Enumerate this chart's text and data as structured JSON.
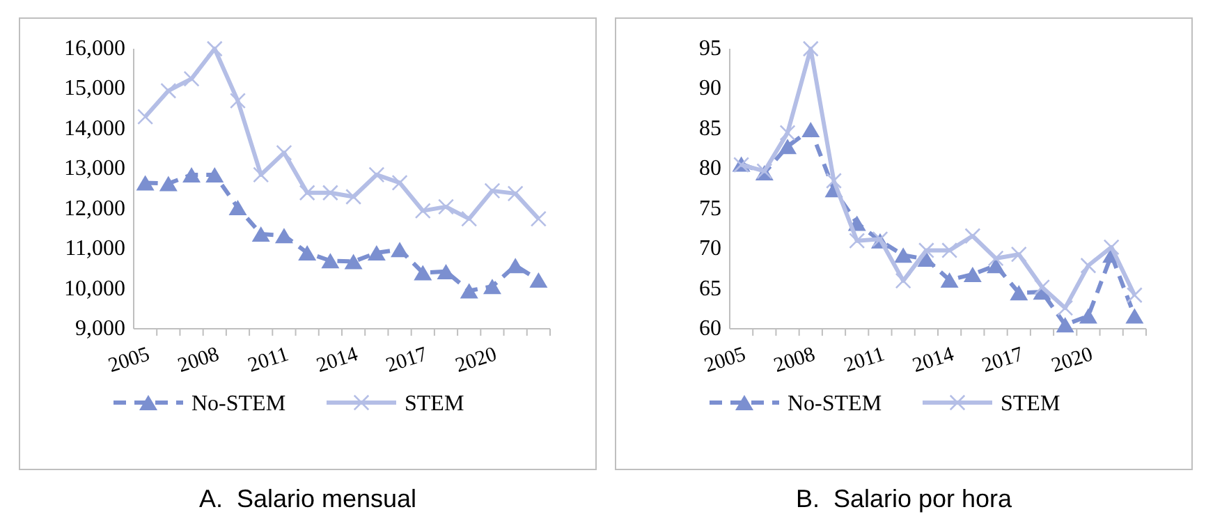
{
  "chart_data": [
    {
      "type": "line",
      "title": "A.  Salario mensual",
      "categories": [
        "2005",
        null,
        null,
        "2008",
        null,
        null,
        "2011",
        null,
        null,
        "2014",
        null,
        null,
        "2017",
        null,
        null,
        "2020",
        null,
        null
      ],
      "series": [
        {
          "name": "No-STEM",
          "color": "#7b8fd0",
          "marker": "triangle",
          "line_style": "dashed",
          "values": [
            12650,
            12630,
            12850,
            12850,
            12030,
            11370,
            11330,
            10900,
            10700,
            10680,
            10900,
            10980,
            10400,
            10430,
            9950,
            10060,
            10580,
            10220
          ]
        },
        {
          "name": "STEM",
          "color": "#b4bee6",
          "marker": "cross",
          "line_style": "solid",
          "values": [
            14300,
            14950,
            15250,
            16000,
            14700,
            12850,
            13400,
            12400,
            12400,
            12300,
            12850,
            12650,
            11950,
            12050,
            11750,
            12450,
            12380,
            11750
          ]
        }
      ],
      "ylim": [
        9000,
        16000
      ],
      "yticks": [
        {
          "value": 9000,
          "label": "9,000"
        },
        {
          "value": 10000,
          "label": "10,000"
        },
        {
          "value": 11000,
          "label": "11,000"
        },
        {
          "value": 12000,
          "label": "12,000"
        },
        {
          "value": 13000,
          "label": "13,000"
        },
        {
          "value": 14000,
          "label": "14,000"
        },
        {
          "value": 15000,
          "label": "15,000"
        },
        {
          "value": 16000,
          "label": "16,000"
        }
      ],
      "grid": false,
      "legend": "bottom"
    },
    {
      "type": "line",
      "title": "B.  Salario por hora",
      "categories": [
        "2005",
        null,
        null,
        "2008",
        null,
        null,
        "2011",
        null,
        null,
        "2014",
        null,
        null,
        "2017",
        null,
        null,
        "2020",
        null,
        null
      ],
      "series": [
        {
          "name": "No-STEM",
          "color": "#7b8fd0",
          "marker": "triangle",
          "line_style": "dashed",
          "values": [
            80.6,
            79.5,
            82.8,
            84.9,
            77.4,
            73.2,
            71,
            69.2,
            68.7,
            66.1,
            66.8,
            67.9,
            64.5,
            64.6,
            60.5,
            61.6,
            69.2,
            61.6
          ]
        },
        {
          "name": "STEM",
          "color": "#b4bee6",
          "marker": "cross",
          "line_style": "solid",
          "values": [
            80.5,
            79.7,
            84.5,
            95,
            78.5,
            71,
            71.2,
            66,
            69.8,
            69.8,
            71.6,
            68.8,
            69.3,
            65.2,
            62.6,
            67.9,
            70.2,
            64.2
          ]
        }
      ],
      "ylim": [
        60,
        95
      ],
      "yticks": [
        60,
        65,
        70,
        75,
        80,
        85,
        90,
        95
      ],
      "grid": false,
      "legend": "bottom"
    }
  ]
}
